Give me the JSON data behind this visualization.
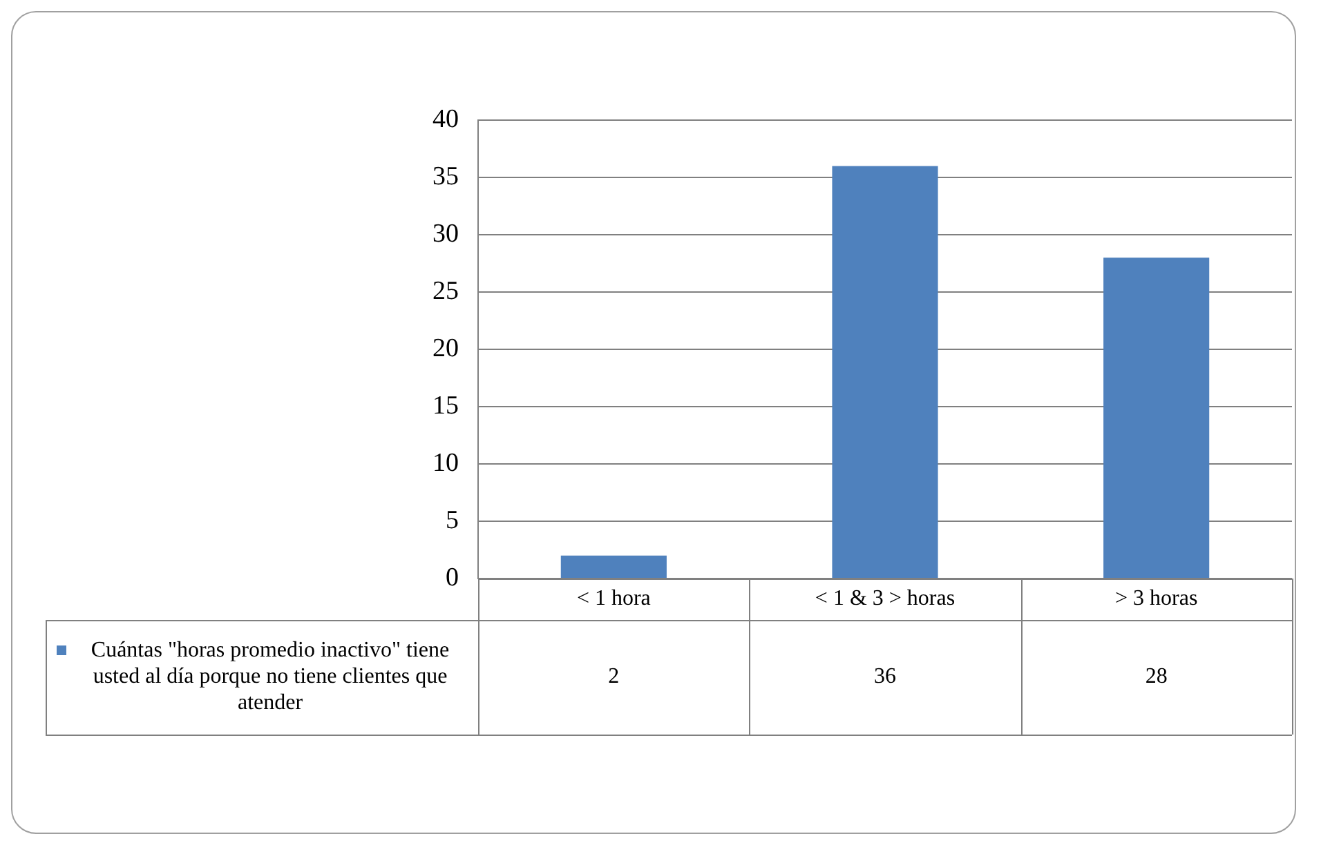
{
  "chart_data": {
    "type": "bar",
    "categories": [
      "< 1 hora",
      "< 1 & 3 > horas",
      "> 3 horas"
    ],
    "series": [
      {
        "name": "Cuántas \"horas promedio inactivo\" tiene usted al día porque no tiene clientes que atender",
        "color": "#4f81bd",
        "values": [
          2,
          36,
          28
        ]
      }
    ],
    "ylim": [
      0,
      40
    ],
    "yticks": [
      0,
      5,
      10,
      15,
      20,
      25,
      30,
      35,
      40
    ],
    "grid": "y",
    "legend": "bottom",
    "data_labels": true
  }
}
